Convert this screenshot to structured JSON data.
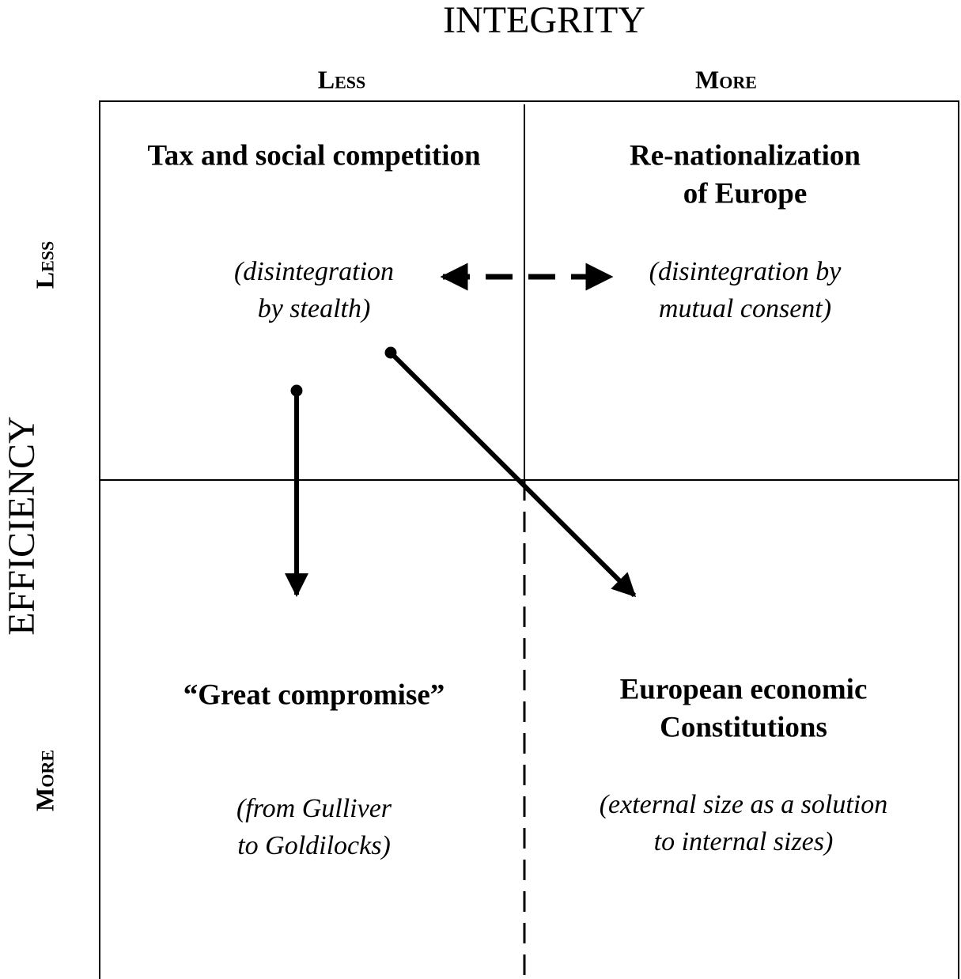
{
  "axes": {
    "x_title": "INTEGRITY",
    "y_title": "EFFICIENCY",
    "x_levels": [
      "Less",
      "More"
    ],
    "y_levels": [
      "Less",
      "More"
    ]
  },
  "quadrants": [
    {
      "title": [
        "Tax and social competition"
      ],
      "subtitle": [
        "(disintegration",
        "by stealth)"
      ]
    },
    {
      "title": [
        "Re-nationalization",
        "of Europe"
      ],
      "subtitle": [
        "(disintegration by",
        "mutual consent)"
      ]
    },
    {
      "title": [
        "“Great compromise”"
      ],
      "subtitle": [
        "(from Gulliver",
        "to Goldilocks)"
      ]
    },
    {
      "title": [
        "European economic",
        "Constitutions"
      ],
      "subtitle": [
        "(external size as a solution",
        "to internal sizes)"
      ]
    }
  ]
}
